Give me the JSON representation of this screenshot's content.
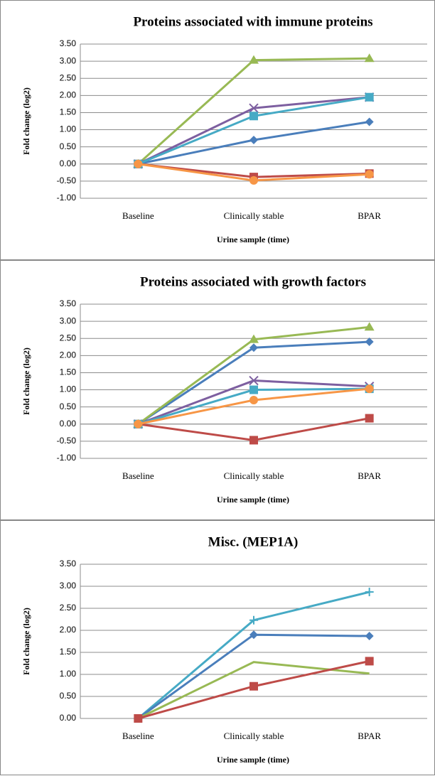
{
  "chart_data": [
    {
      "type": "line",
      "title": "Proteins associated with immune proteins",
      "x_label": "Urine sample (time)",
      "y_label": "Fold change (log2)",
      "categories": [
        "Baseline",
        "Clinically stable",
        "BPAR"
      ],
      "ylim": [
        -1,
        3.5
      ],
      "yticks": [
        {
          "value": -1,
          "label": "-1.00"
        },
        {
          "value": -0.5,
          "label": "-0.50"
        },
        {
          "value": 0,
          "label": "0.00"
        },
        {
          "value": 0.5,
          "label": "0.50"
        },
        {
          "value": 1,
          "label": "1.00"
        },
        {
          "value": 1.5,
          "label": "1.50"
        },
        {
          "value": 2,
          "label": "2.00"
        },
        {
          "value": 2.5,
          "label": "2.50"
        },
        {
          "value": 3,
          "label": "3.00"
        },
        {
          "value": 3.5,
          "label": "3.50"
        }
      ],
      "grid": true,
      "series": [
        {
          "color": "#4a7ebb",
          "marker": "diamond",
          "values": [
            0,
            0.7,
            1.23
          ]
        },
        {
          "color": "#be4b48",
          "marker": "square",
          "values": [
            0,
            -0.38,
            -0.28
          ]
        },
        {
          "color": "#98b954",
          "marker": "triangle",
          "values": [
            0,
            3.03,
            3.08
          ]
        },
        {
          "color": "#7d5fa0",
          "marker": "x",
          "values": [
            0,
            1.63,
            1.95
          ]
        },
        {
          "color": "#46aac5",
          "marker": "square",
          "values": [
            0,
            1.4,
            1.95
          ]
        },
        {
          "color": "#f79646",
          "marker": "circle",
          "values": [
            0,
            -0.48,
            -0.3
          ]
        }
      ]
    },
    {
      "type": "line",
      "title": "Proteins associated with growth factors",
      "x_label": "Urine sample (time)",
      "y_label": "Fold change (log2)",
      "categories": [
        "Baseline",
        "Clinically stable",
        "BPAR"
      ],
      "ylim": [
        -1,
        3.5
      ],
      "yticks": [
        {
          "value": -1,
          "label": "-1.00"
        },
        {
          "value": -0.5,
          "label": "-0.50"
        },
        {
          "value": 0,
          "label": "0.00"
        },
        {
          "value": 0.5,
          "label": "0.50"
        },
        {
          "value": 1,
          "label": "1.00"
        },
        {
          "value": 1.5,
          "label": "1.50"
        },
        {
          "value": 2,
          "label": "2.00"
        },
        {
          "value": 2.5,
          "label": "2.50"
        },
        {
          "value": 3,
          "label": "3.00"
        },
        {
          "value": 3.5,
          "label": "3.50"
        }
      ],
      "grid": true,
      "series": [
        {
          "color": "#4a7ebb",
          "marker": "diamond",
          "values": [
            0,
            2.23,
            2.4
          ]
        },
        {
          "color": "#be4b48",
          "marker": "square",
          "values": [
            0,
            -0.47,
            0.17
          ]
        },
        {
          "color": "#98b954",
          "marker": "triangle",
          "values": [
            0,
            2.47,
            2.83
          ]
        },
        {
          "color": "#7d5fa0",
          "marker": "x",
          "values": [
            0,
            1.27,
            1.1
          ]
        },
        {
          "color": "#46aac5",
          "marker": "square",
          "values": [
            0,
            1.0,
            1.03
          ]
        },
        {
          "color": "#f79646",
          "marker": "circle",
          "values": [
            0,
            0.7,
            1.03
          ]
        }
      ]
    },
    {
      "type": "line",
      "title": "Misc. (MEP1A)",
      "x_label": "Urine sample (time)",
      "y_label": "Fold change (log2)",
      "categories": [
        "Baseline",
        "Clinically stable",
        "BPAR"
      ],
      "ylim": [
        0,
        3.5
      ],
      "yticks": [
        {
          "value": 0,
          "label": "0.00"
        },
        {
          "value": 0.5,
          "label": "0.50"
        },
        {
          "value": 1,
          "label": "1.00"
        },
        {
          "value": 1.5,
          "label": "1.50"
        },
        {
          "value": 2,
          "label": "2.00"
        },
        {
          "value": 2.5,
          "label": "2.50"
        },
        {
          "value": 3,
          "label": "3.00"
        },
        {
          "value": 3.5,
          "label": "3.50"
        }
      ],
      "grid": true,
      "series": [
        {
          "color": "#46aac5",
          "marker": "plus",
          "values": [
            0,
            2.23,
            2.87
          ]
        },
        {
          "color": "#4a7ebb",
          "marker": "diamond",
          "values": [
            0,
            1.9,
            1.87
          ]
        },
        {
          "color": "#98b954",
          "marker": "none",
          "values": [
            0,
            1.28,
            1.02
          ]
        },
        {
          "color": "#be4b48",
          "marker": "square",
          "values": [
            0,
            0.73,
            1.3
          ]
        }
      ]
    }
  ]
}
